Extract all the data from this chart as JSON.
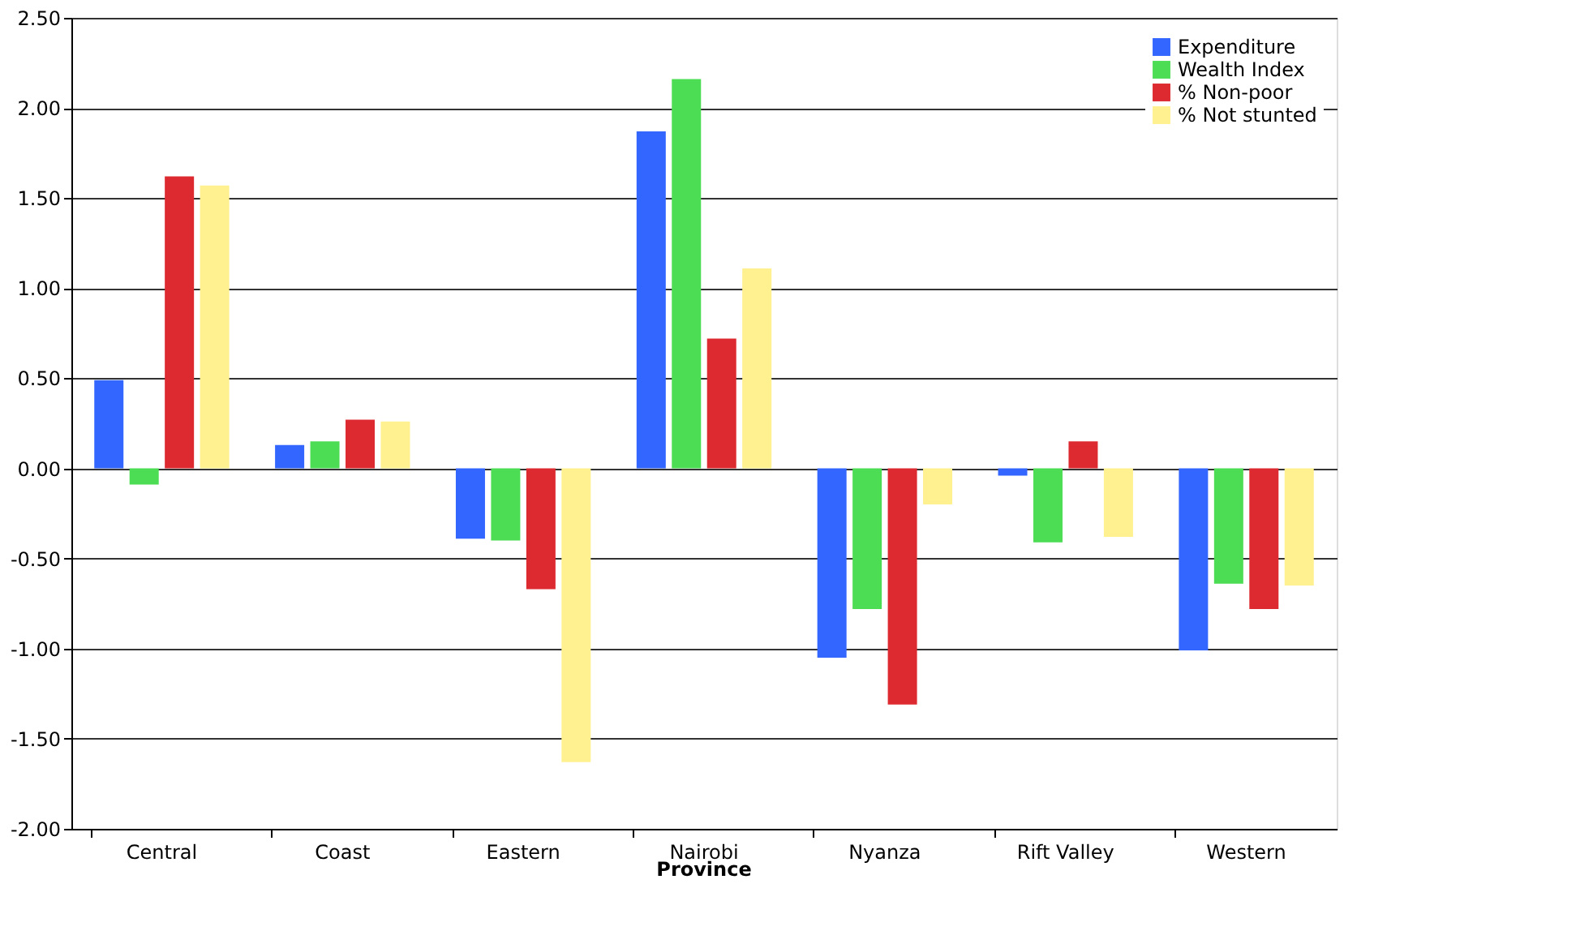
{
  "chart_data": {
    "type": "bar",
    "xlabel": "Province",
    "categories": [
      "Central",
      "Coast",
      "Eastern",
      "Nairobi",
      "Nyanza",
      "Rift Valley",
      "Western"
    ],
    "series": [
      {
        "name": "Expenditure",
        "color": "#3366ff",
        "values": [
          0.49,
          0.13,
          -0.39,
          1.87,
          -1.05,
          -0.04,
          -1.01
        ]
      },
      {
        "name": "Wealth Index",
        "color": "#4ddd55",
        "values": [
          -0.09,
          0.15,
          -0.4,
          2.16,
          -0.78,
          -0.41,
          -0.64
        ]
      },
      {
        "name": "% Non-poor",
        "color": "#dd2a30",
        "values": [
          1.62,
          0.27,
          -0.67,
          0.72,
          -1.31,
          0.15,
          -0.78
        ]
      },
      {
        "name": "% Not stunted",
        "color": "#fff18f",
        "values": [
          1.57,
          0.26,
          -1.63,
          1.11,
          -0.2,
          -0.38,
          -0.65
        ]
      }
    ],
    "ylim": [
      -2.0,
      2.5
    ],
    "yticks": [
      {
        "value": -2.0,
        "label": "-2.00"
      },
      {
        "value": -1.5,
        "label": "-1.50"
      },
      {
        "value": -1.0,
        "label": "-1.00"
      },
      {
        "value": -0.5,
        "label": "-0.50"
      },
      {
        "value": 0.0,
        "label": "0.00"
      },
      {
        "value": 0.5,
        "label": "0.50"
      },
      {
        "value": 1.0,
        "label": "1.00"
      },
      {
        "value": 1.5,
        "label": "1.50"
      },
      {
        "value": 2.0,
        "label": "2.00"
      },
      {
        "value": 2.5,
        "label": "2.50"
      }
    ],
    "grid": "y",
    "legend": "top right"
  }
}
